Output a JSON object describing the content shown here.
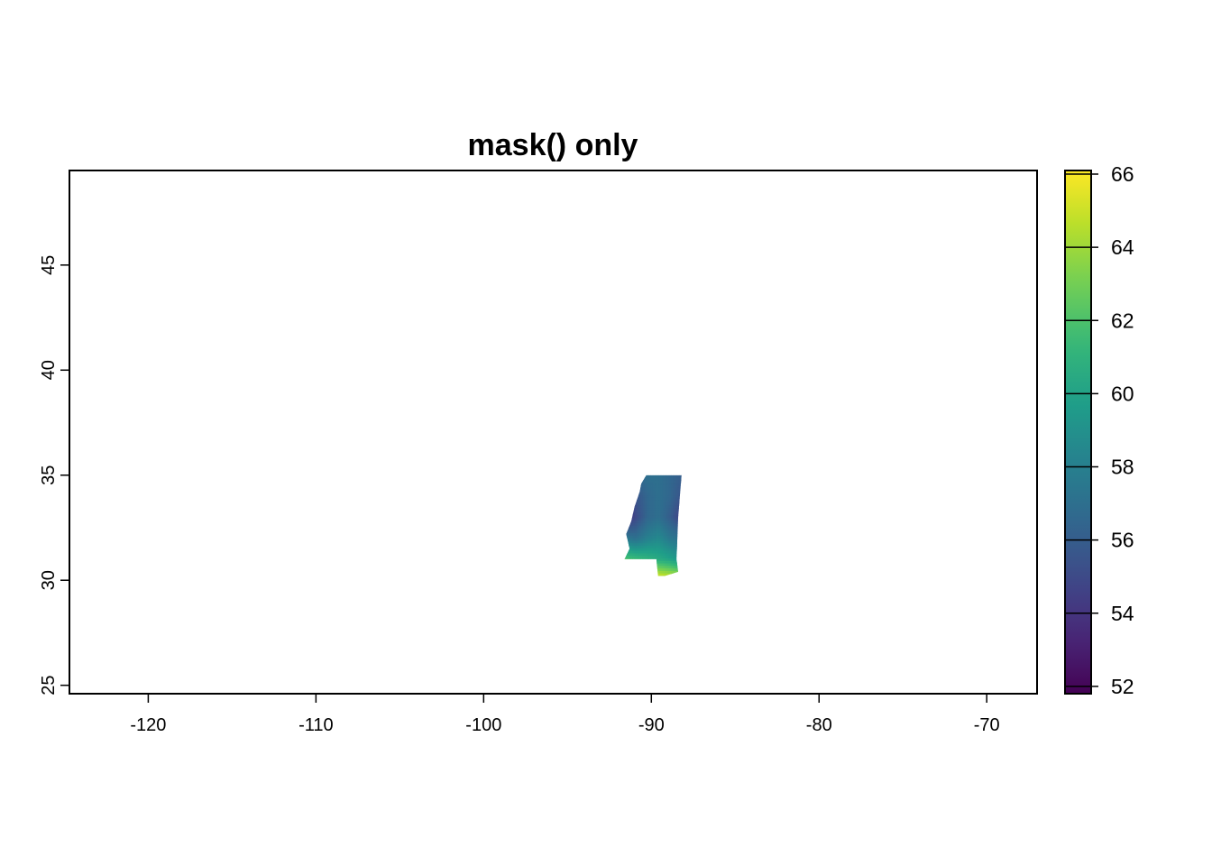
{
  "chart_data": {
    "type": "heatmap",
    "title": "mask() only",
    "xlabel": "",
    "ylabel": "",
    "xlim": [
      -124.7,
      -67.0
    ],
    "ylim": [
      24.6,
      49.5
    ],
    "x_ticks": [
      -120,
      -110,
      -100,
      -90,
      -80,
      -70
    ],
    "x_tick_labels": [
      "-120",
      "-110",
      "-100",
      "-90",
      "-80",
      "-70"
    ],
    "y_ticks": [
      25,
      30,
      35,
      40,
      45
    ],
    "y_tick_labels": [
      "25",
      "30",
      "35",
      "40",
      "45"
    ],
    "grid": false,
    "legend": {
      "type": "colorbar",
      "placement": "right",
      "min": 51.8,
      "max": 66.1,
      "ticks": [
        52,
        54,
        56,
        58,
        60,
        62,
        64,
        66
      ],
      "tick_labels": [
        "52",
        "54",
        "56",
        "58",
        "60",
        "62",
        "64",
        "66"
      ],
      "colormap": "viridis"
    },
    "region": {
      "outline": [
        [
          -90.3,
          35.0
        ],
        [
          -88.2,
          35.0
        ],
        [
          -88.4,
          33.0
        ],
        [
          -88.5,
          31.0
        ],
        [
          -88.4,
          30.4
        ],
        [
          -89.2,
          30.2
        ],
        [
          -89.6,
          30.2
        ],
        [
          -89.7,
          31.0
        ],
        [
          -91.6,
          31.0
        ],
        [
          -91.3,
          31.5
        ],
        [
          -91.5,
          32.2
        ],
        [
          -91.2,
          32.8
        ],
        [
          -91.0,
          33.5
        ],
        [
          -90.7,
          34.2
        ],
        [
          -90.6,
          34.6
        ]
      ],
      "value_field": [
        {
          "lat": 34.9,
          "values": [
            55.5,
            56.5,
            57.0,
            57.0,
            56.5,
            56.0
          ]
        },
        {
          "lat": 34.0,
          "values": [
            53.5,
            55.5,
            56.5,
            57.0,
            56.5,
            55.5
          ]
        },
        {
          "lat": 33.0,
          "values": [
            53.5,
            55.0,
            56.5,
            57.0,
            56.0,
            54.5
          ]
        },
        {
          "lat": 32.0,
          "values": [
            57.5,
            57.0,
            58.0,
            58.5,
            57.5,
            57.0
          ]
        },
        {
          "lat": 31.0,
          "values": [
            62.0,
            61.5,
            61.0,
            60.5,
            60.0,
            59.0
          ]
        },
        {
          "lat": 30.2,
          "values": [
            65.0,
            65.5,
            65.5,
            65.0,
            64.5,
            64.0
          ]
        }
      ],
      "field_lon_range": [
        -91.6,
        -88.2
      ]
    }
  }
}
